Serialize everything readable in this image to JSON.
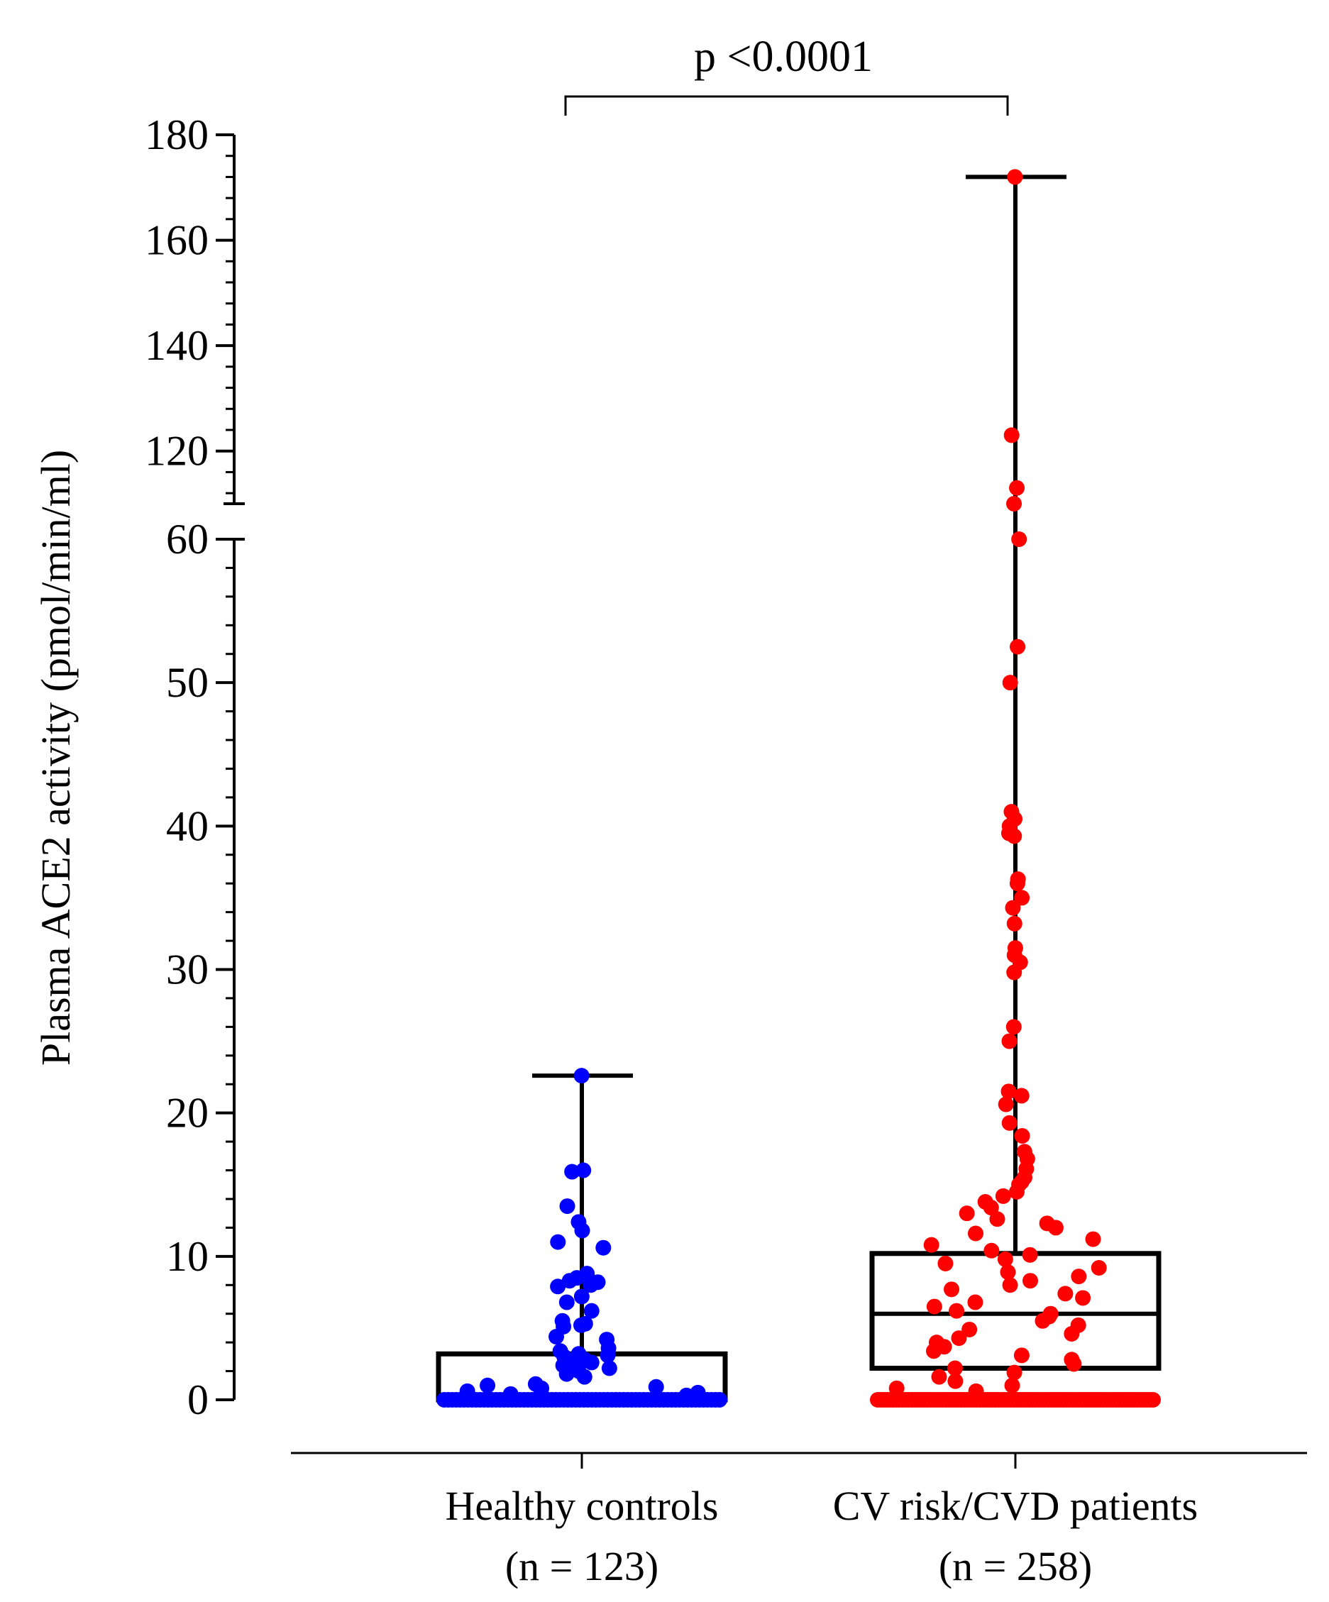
{
  "chart_data": {
    "type": "box-scatter",
    "title": "",
    "xlabel": "",
    "ylabel": "Plasma ACE2 activity (pmol/min/ml)",
    "y_axis_break": {
      "lower_range": [
        0,
        60
      ],
      "upper_range": [
        110,
        180
      ],
      "lower_ticks": [
        0,
        10,
        20,
        30,
        40,
        50,
        60
      ],
      "upper_ticks": [
        120,
        140,
        160,
        180
      ]
    },
    "tick_labels": [
      "0",
      "10",
      "20",
      "30",
      "40",
      "50",
      "60",
      "120",
      "140",
      "160",
      "180"
    ],
    "annotation": "p <0.0001",
    "groups": [
      {
        "name": "Healthy controls",
        "n_label": "(n = 123)",
        "color": "#0000ff",
        "box": {
          "q1": 0,
          "median": 0,
          "q3": 3.2,
          "whisker_low": 0,
          "whisker_high": 22.6
        },
        "outlier_points": [
          22.6,
          16.0,
          15.9,
          13.5,
          12.4,
          11.8,
          11.0,
          10.6,
          8.8,
          8.5,
          8.3,
          8.2,
          8.0,
          7.9,
          7.2,
          6.8,
          6.2,
          5.5,
          5.3,
          5.2,
          5.1,
          4.4,
          4.2,
          3.6,
          3.4,
          3.2,
          3.1,
          3.0,
          2.9,
          2.8,
          2.6,
          2.5,
          2.4,
          2.2,
          2.0,
          1.8,
          1.6,
          1.1,
          1.0,
          0.9,
          0.8,
          0.7,
          0.6,
          0.5,
          0.4,
          0.3
        ],
        "zero_count": 70
      },
      {
        "name": "CV risk/CVD patients",
        "n_label": "(n = 258)",
        "color": "#ff0000",
        "box": {
          "q1": 2.2,
          "median": 6.0,
          "q3": 10.2,
          "whisker_low": 0,
          "whisker_high": 172
        },
        "outlier_points": [
          172,
          123,
          113,
          62,
          60,
          52.5,
          50,
          41,
          40.5,
          40,
          39.5,
          39.3,
          36.3,
          36,
          35,
          34.3,
          33.2,
          31.5,
          31,
          30.5,
          29.8,
          26,
          25,
          21.5,
          21.2,
          20.6,
          19.3,
          18.4,
          17.3,
          16.8,
          16.1,
          15.5,
          15.2,
          15.0,
          14.5,
          14.2,
          13.8,
          13.4,
          13.0,
          12.6,
          12.3,
          12.0,
          11.6,
          11.2,
          10.8,
          10.4,
          10.1,
          9.8,
          9.5,
          9.2,
          8.9,
          8.6,
          8.3,
          8.0,
          7.7,
          7.4,
          7.1,
          6.8,
          6.5,
          6.2,
          6.0,
          5.8,
          5.5,
          5.2,
          4.9,
          4.6,
          4.3,
          4.0,
          3.7,
          3.4,
          3.1,
          2.8,
          2.5,
          2.2,
          1.9,
          1.6,
          1.3,
          1.0,
          0.8,
          0.6
        ],
        "zero_count": 90
      }
    ]
  }
}
